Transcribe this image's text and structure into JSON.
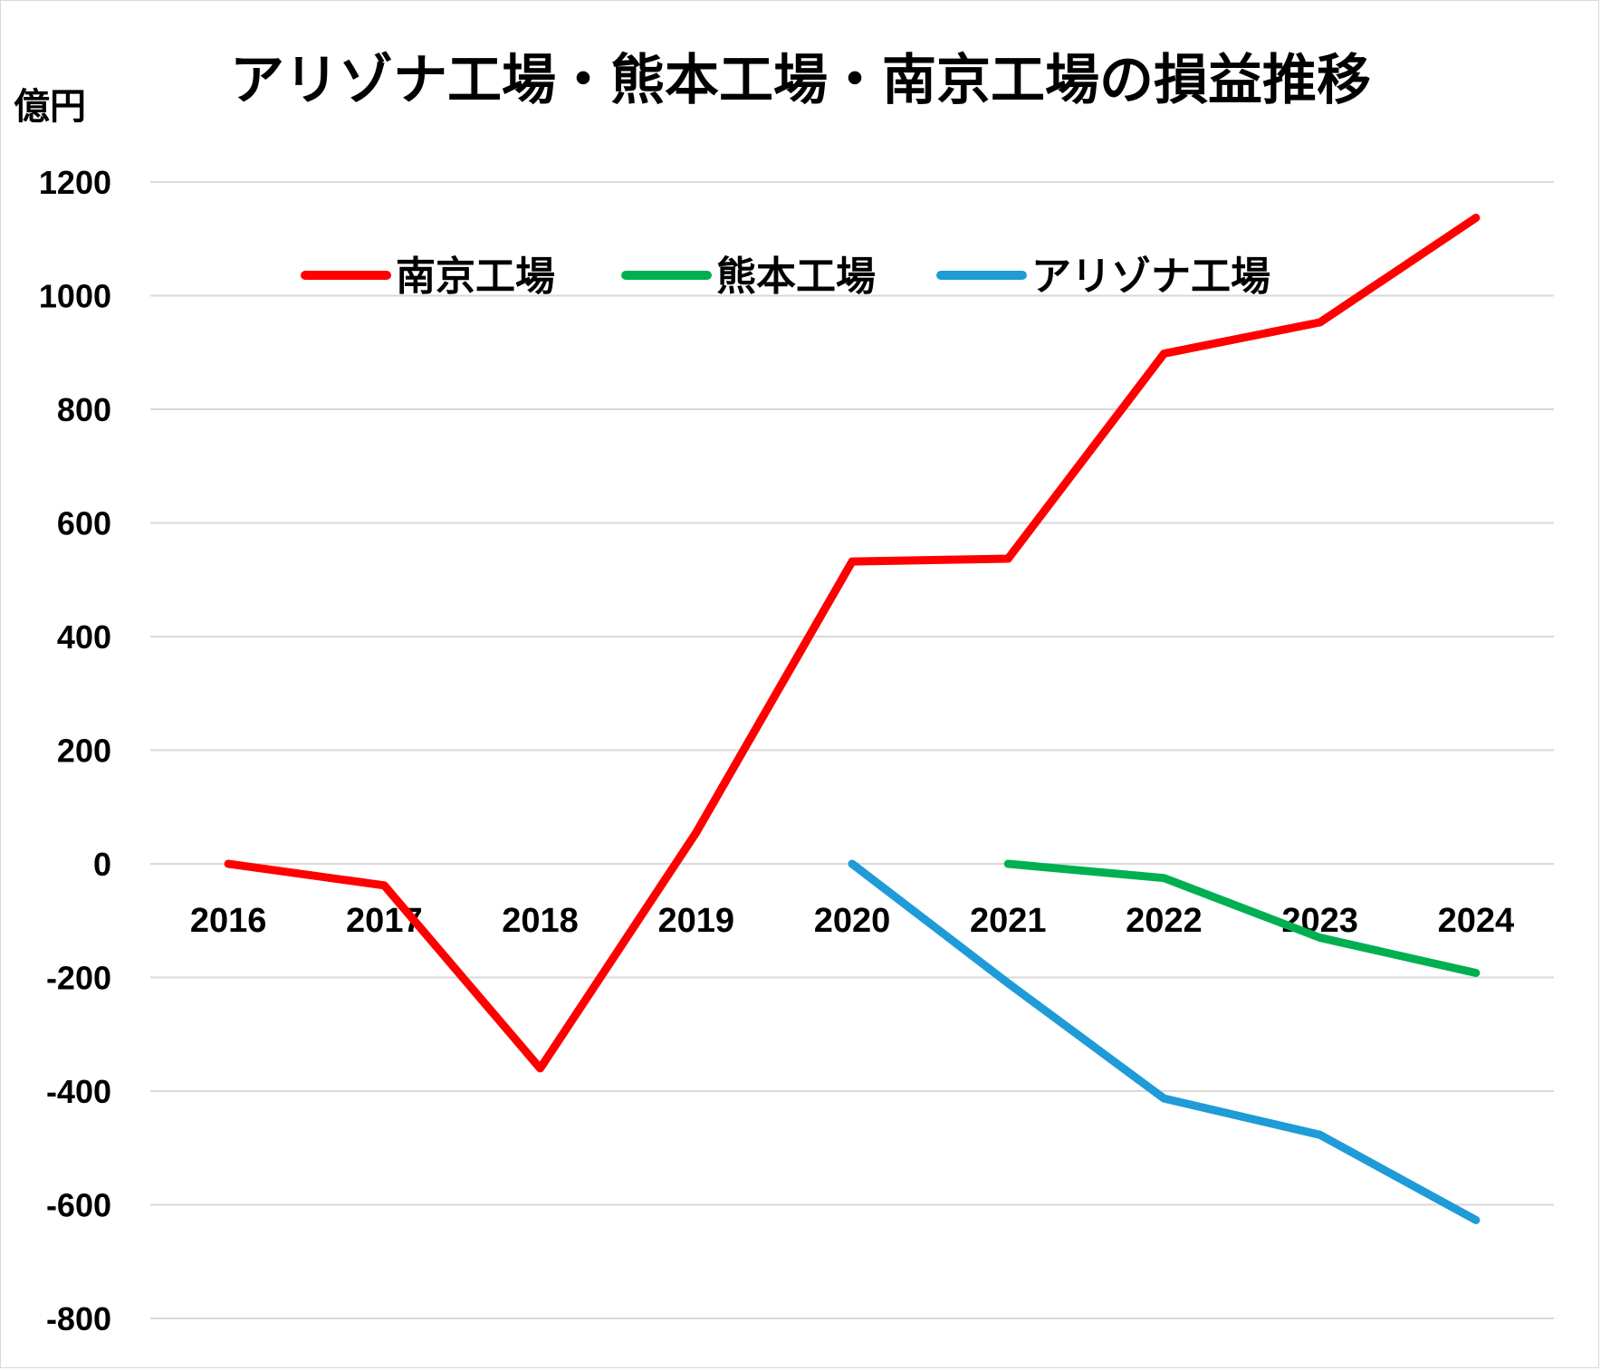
{
  "chart_data": {
    "type": "line",
    "title": "アリゾナ工場・熊本工場・南京工場の損益推移",
    "ylabel": "億円",
    "xlabel": "",
    "categories": [
      "2016",
      "2017",
      "2018",
      "2019",
      "2020",
      "2021",
      "2022",
      "2023",
      "2024"
    ],
    "ylim": [
      -800,
      1200
    ],
    "yticks": [
      "1200",
      "1000",
      "800",
      "600",
      "400",
      "200",
      "0",
      "-200",
      "-400",
      "-600",
      "-800"
    ],
    "grid": true,
    "legend_position": "top",
    "series": [
      {
        "name": "南京工場",
        "color": "#ff0000",
        "values": [
          0,
          -38,
          -360,
          55,
          532,
          537,
          898,
          953,
          1137
        ]
      },
      {
        "name": "熊本工場",
        "color": "#00b050",
        "values": [
          null,
          null,
          null,
          null,
          null,
          0,
          -25,
          -130,
          -192
        ]
      },
      {
        "name": "アリゾナ工場",
        "color": "#1f9bd7",
        "values": [
          null,
          null,
          null,
          null,
          0,
          -210,
          -413,
          -477,
          -627
        ]
      }
    ]
  }
}
